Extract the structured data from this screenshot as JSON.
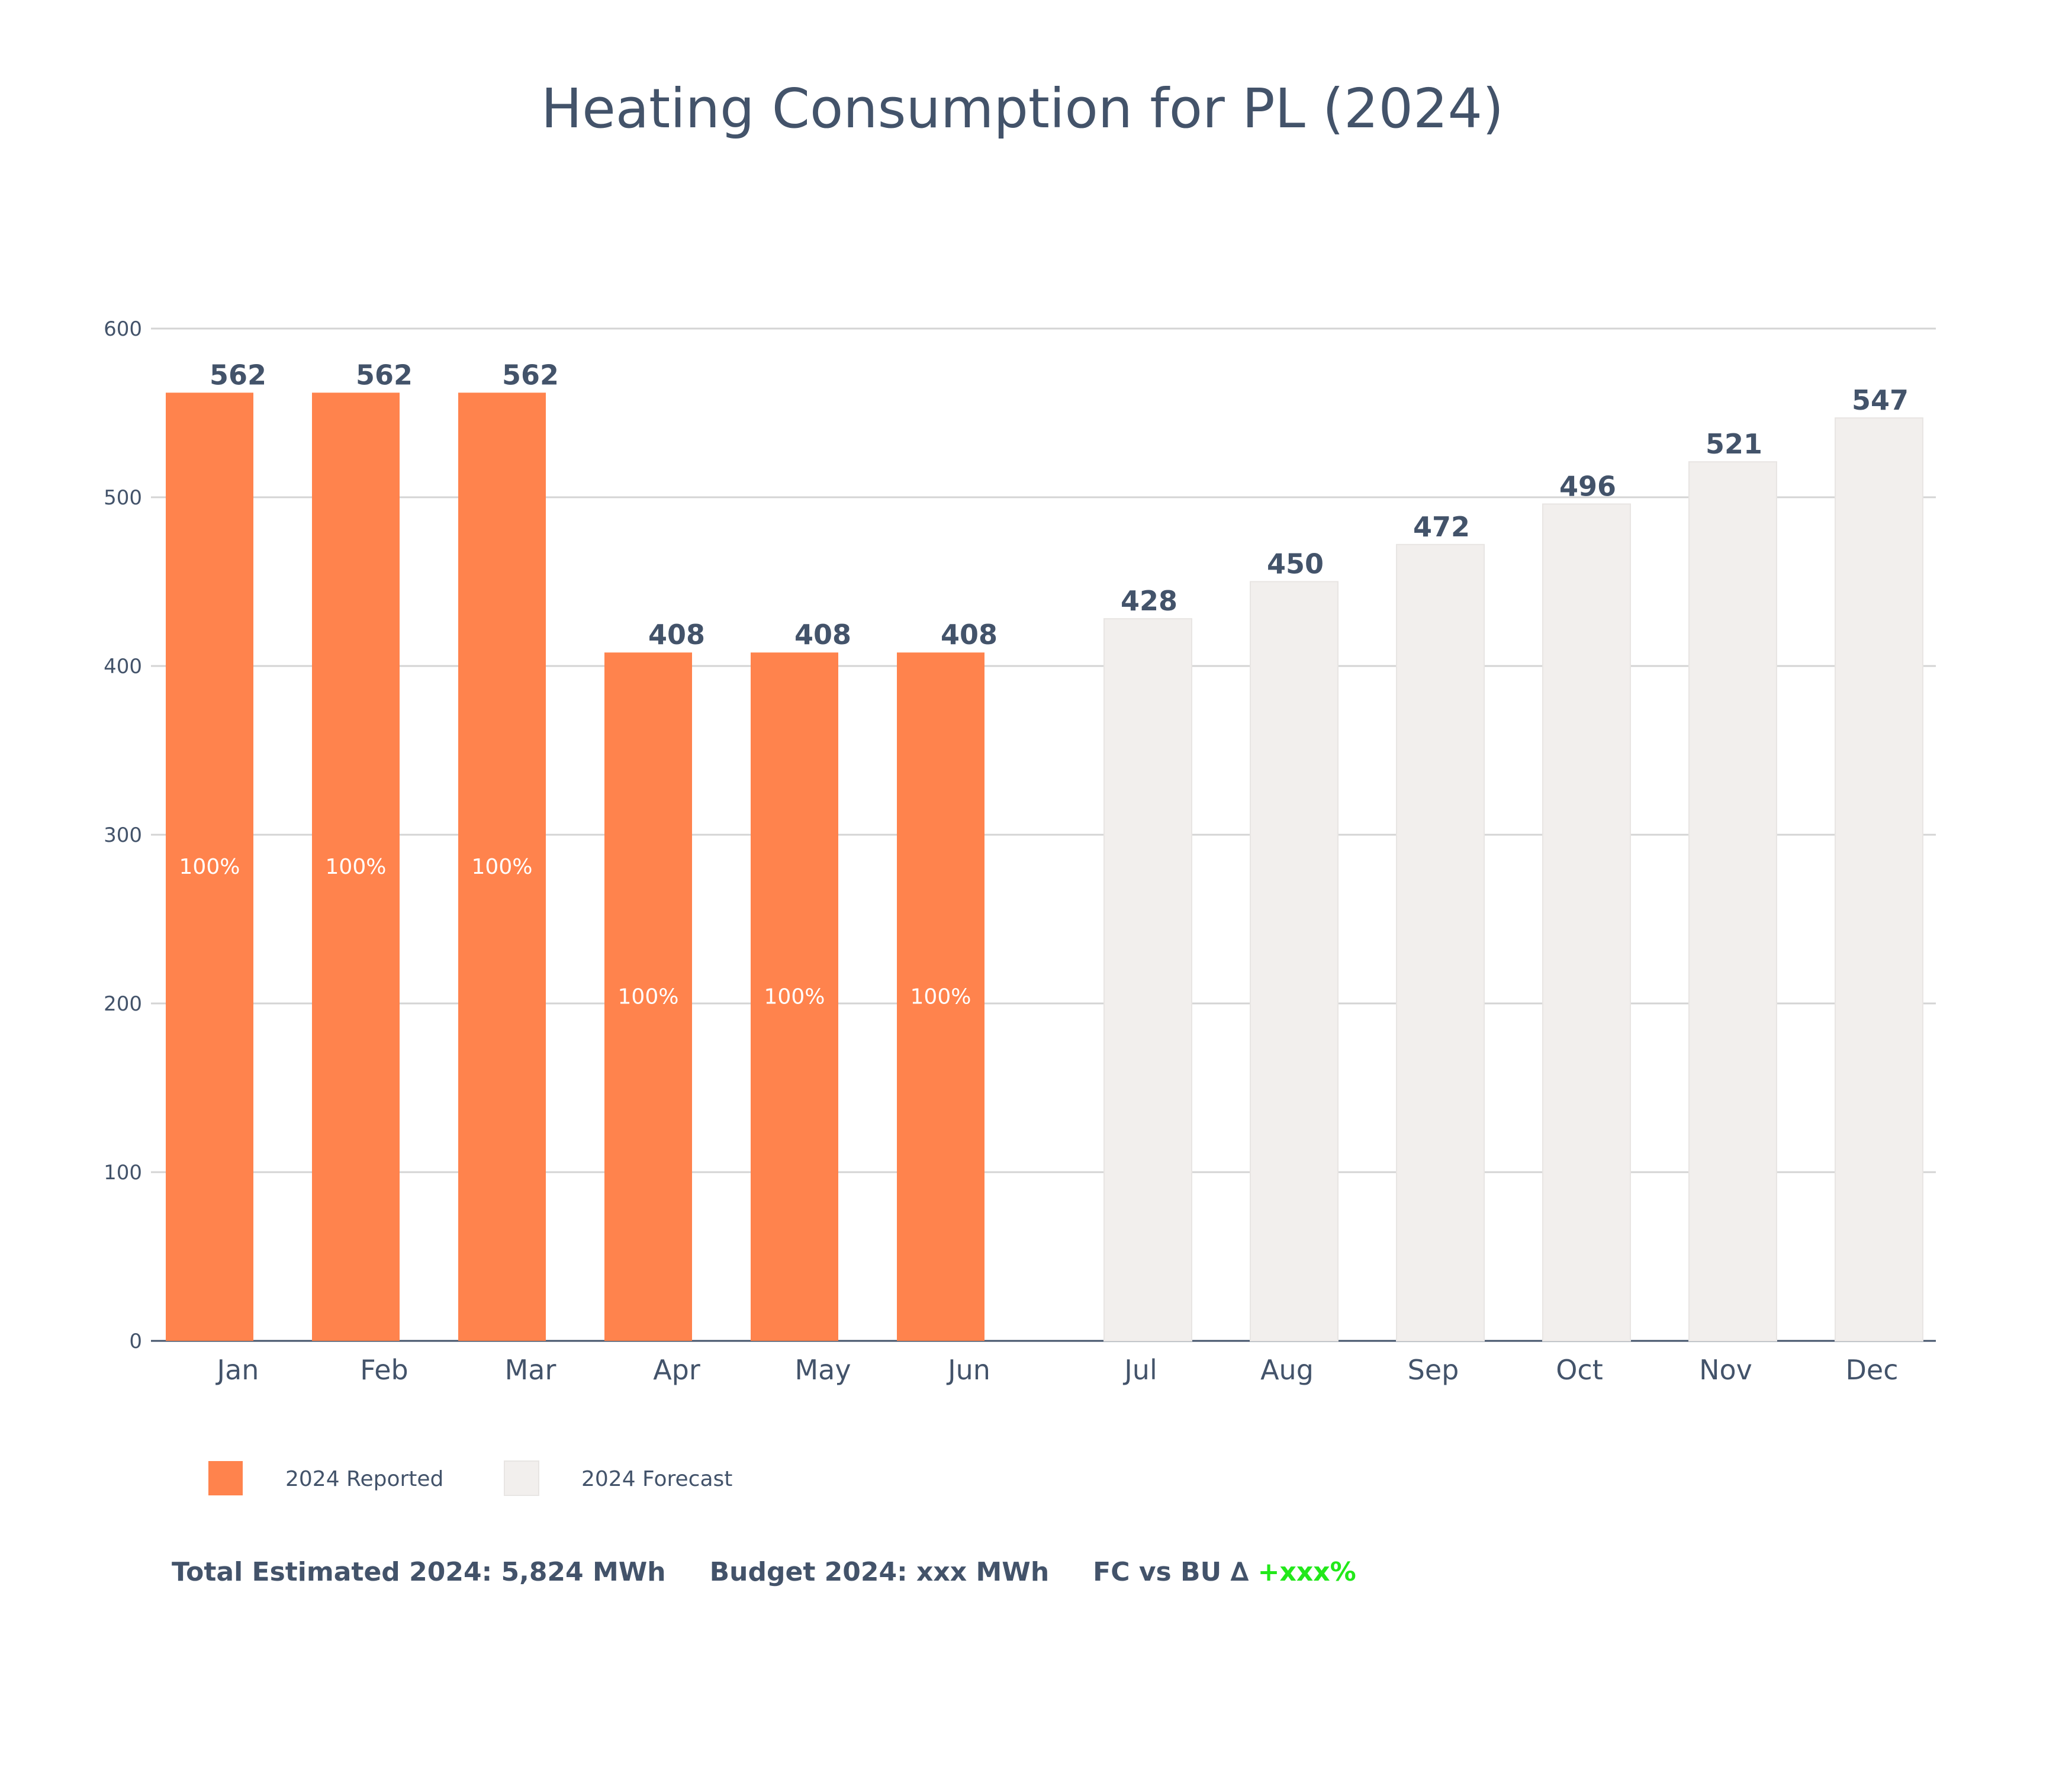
{
  "chart_data": {
    "type": "bar",
    "title": "Heating Consumption for PL (2024)",
    "xlabel": "",
    "ylabel": "",
    "ylim": [
      0,
      600
    ],
    "yticks": [
      0,
      100,
      200,
      300,
      400,
      500,
      600
    ],
    "grid": true,
    "legend_position": "bottom-left",
    "categories": [
      "Jan",
      "Feb",
      "Mar",
      "Apr",
      "May",
      "Jun",
      "Jul",
      "Aug",
      "Sep",
      "Oct",
      "Nov",
      "Dec"
    ],
    "series": [
      {
        "name": "2024 Reported",
        "color": "#ff834d",
        "values": [
          562,
          562,
          562,
          408,
          408,
          408,
          null,
          null,
          null,
          null,
          null,
          null
        ],
        "inner_labels": [
          "100%",
          "100%",
          "100%",
          "100%",
          "100%",
          "100%",
          null,
          null,
          null,
          null,
          null,
          null
        ]
      },
      {
        "name": "2024 Forecast",
        "color": "#f2efed",
        "values": [
          null,
          null,
          null,
          null,
          null,
          null,
          428,
          450,
          472,
          496,
          521,
          547
        ]
      }
    ]
  },
  "footer": {
    "total": "Total Estimated 2024: 5,824 MWh",
    "budget": "Budget 2024: xxx MWh",
    "delta_label": "FC vs BU ∆",
    "delta_value": "+xxx%",
    "delta_color": "#22e81a"
  }
}
